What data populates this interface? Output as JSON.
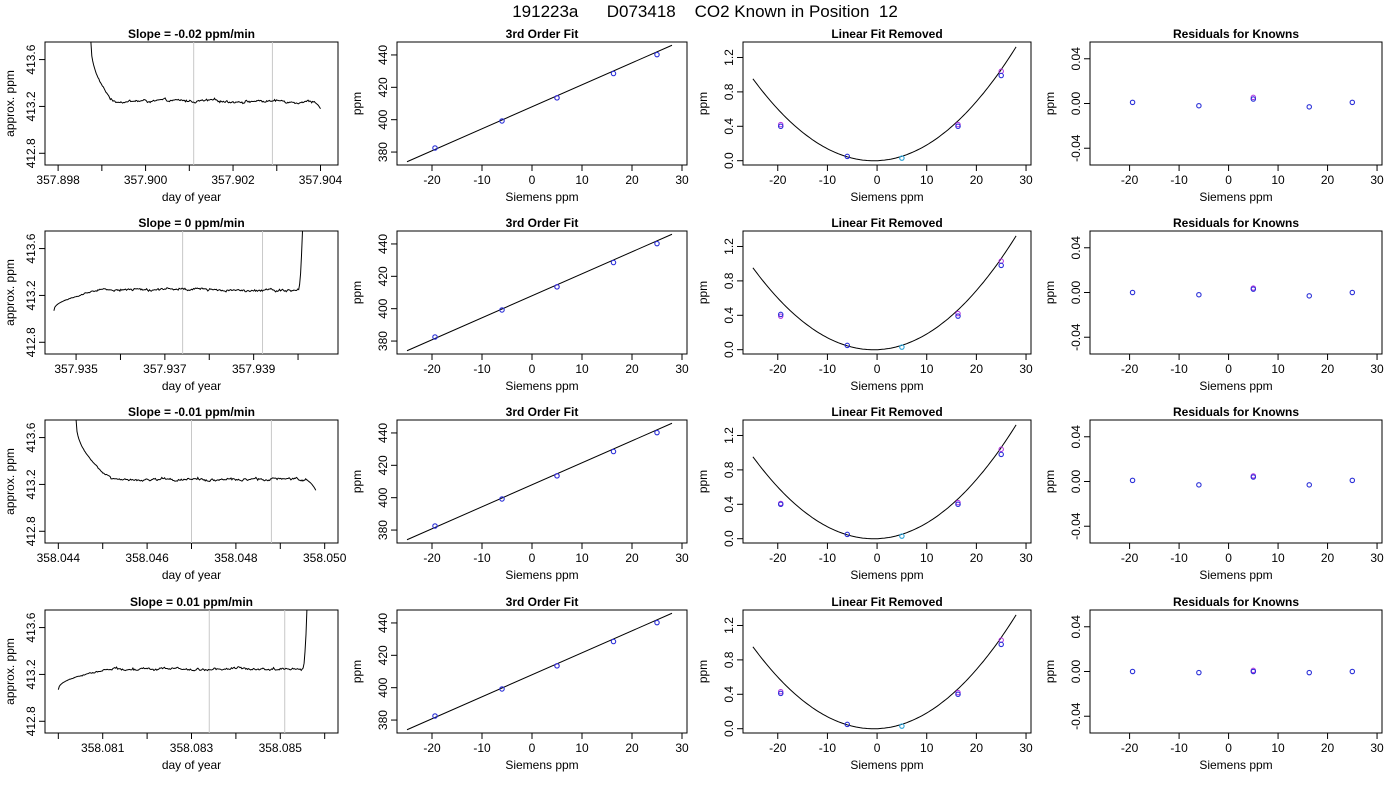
{
  "figure": {
    "title": "191223a      D073418    CO2 Known in Position  12"
  },
  "chart_data": [
    {
      "row": 0,
      "col": 0,
      "type": "line",
      "title": "Slope =  -0.02  ppm/min",
      "xlabel": "day of year",
      "ylabel": "approx. ppm",
      "xlim": [
        357.8977,
        357.9044
      ],
      "ylim": [
        412.7,
        413.75
      ],
      "xticks": [
        357.898,
        357.9,
        357.902,
        357.904
      ],
      "xtick_labels": [
        "357.898",
        "357.900",
        "357.902",
        "357.904"
      ],
      "minor_xticks": [
        357.899,
        357.901,
        357.903
      ],
      "yticks": [
        412.8,
        413.2,
        413.6
      ],
      "ytick_labels": [
        "412.8",
        "413.2",
        "413.6"
      ],
      "vlines": [
        357.9011,
        357.9029
      ],
      "trace_start": [
        357.89875,
        413.75
      ],
      "trace_plateau_start": 357.89925,
      "trace_end": [
        357.904,
        413.18
      ],
      "trace_plateau_end": 357.9038,
      "plateau_level": 413.245,
      "noise": 0.015
    },
    {
      "row": 0,
      "col": 1,
      "type": "scatter",
      "title": "3rd Order Fit",
      "xlabel": "Siemens ppm",
      "ylabel": "ppm",
      "xlim": [
        -27,
        31
      ],
      "ylim": [
        372,
        448
      ],
      "xticks": [
        -20,
        -10,
        0,
        10,
        20,
        30
      ],
      "xtick_labels": [
        "-20",
        "-10",
        "0",
        "10",
        "20",
        "30"
      ],
      "yticks": [
        380,
        400,
        420,
        440
      ],
      "ytick_labels": [
        "380",
        "400",
        "420",
        "440"
      ],
      "fit_line": [
        [
          -25,
          374
        ],
        [
          28,
          446
        ]
      ],
      "points": [
        {
          "x": -19.4,
          "y": 382.5
        },
        {
          "x": -6,
          "y": 399.2
        },
        {
          "x": 5,
          "y": 413.5
        },
        {
          "x": 16.3,
          "y": 428.5
        },
        {
          "x": 25,
          "y": 440.2
        }
      ],
      "open_points": [
        {
          "x": 5,
          "y": 413.5
        }
      ]
    },
    {
      "row": 0,
      "col": 2,
      "type": "scatter",
      "title": "Linear Fit Removed",
      "xlabel": "Siemens ppm",
      "ylabel": "ppm",
      "xlim": [
        -27,
        31
      ],
      "ylim": [
        -0.05,
        1.38
      ],
      "xticks": [
        -20,
        -10,
        0,
        10,
        20,
        30
      ],
      "xtick_labels": [
        "-20",
        "-10",
        "0",
        "10",
        "20",
        "30"
      ],
      "yticks": [
        0.0,
        0.4,
        0.8,
        1.2
      ],
      "ytick_labels": [
        "0.0",
        "0.4",
        "0.8",
        "1.2"
      ],
      "curve": {
        "x_range": [
          -25,
          28
        ],
        "a": 0.00161,
        "b": 0.00216,
        "c": 0
      },
      "points": [
        {
          "x": -19.4,
          "y": 0.4
        },
        {
          "x": -6,
          "y": 0.05
        },
        {
          "x": 5,
          "y": 0.03
        },
        {
          "x": 16.3,
          "y": 0.4
        },
        {
          "x": 25,
          "y": 0.99
        }
      ],
      "open_points": [
        {
          "x": -19.4,
          "y": 0.42
        },
        {
          "x": 16.3,
          "y": 0.42
        },
        {
          "x": 25,
          "y": 1.04
        }
      ]
    },
    {
      "row": 0,
      "col": 3,
      "type": "scatter",
      "title": "Residuals for Knowns",
      "xlabel": "Siemens ppm",
      "ylabel": "ppm",
      "xlim": [
        -28,
        31
      ],
      "ylim": [
        -0.055,
        0.055
      ],
      "xticks": [
        -20,
        -10,
        0,
        10,
        20,
        30
      ],
      "xtick_labels": [
        "-20",
        "-10",
        "0",
        "10",
        "20",
        "30"
      ],
      "yticks": [
        -0.04,
        0.0,
        0.04
      ],
      "ytick_labels": [
        "-0.04",
        "0.00",
        "0.04"
      ],
      "points": [
        {
          "x": -19.4,
          "y": 0.001
        },
        {
          "x": -6,
          "y": -0.002
        },
        {
          "x": 5,
          "y": 0.004
        },
        {
          "x": 16.3,
          "y": -0.003
        },
        {
          "x": 25,
          "y": 0.001
        }
      ],
      "open_points": [
        {
          "x": 5,
          "y": 0.0055
        }
      ]
    },
    {
      "row": 1,
      "col": 0,
      "type": "line",
      "title": "Slope =  0  ppm/min",
      "xlabel": "day of year",
      "ylabel": "approx. ppm",
      "xlim": [
        357.9343,
        357.9409
      ],
      "ylim": [
        412.7,
        413.75
      ],
      "xticks": [
        357.935,
        357.937,
        357.939
      ],
      "xtick_labels": [
        "357.935",
        "357.937",
        "357.939"
      ],
      "minor_xticks": [
        357.934,
        357.936,
        357.938,
        357.94
      ],
      "yticks": [
        412.8,
        413.2,
        413.6
      ],
      "ytick_labels": [
        "412.8",
        "413.2",
        "413.6"
      ],
      "vlines": [
        357.9374,
        357.9392
      ],
      "trace_start": [
        357.9345,
        413.07
      ],
      "trace_plateau_start": 357.9357,
      "trace_end": [
        357.9401,
        413.75
      ],
      "trace_plateau_end": 357.94,
      "plateau_level": 413.25,
      "noise": 0.015
    },
    {
      "row": 1,
      "col": 1,
      "type": "scatter",
      "title": "3rd Order Fit",
      "xlabel": "Siemens ppm",
      "ylabel": "ppm",
      "xlim": [
        -27,
        31
      ],
      "ylim": [
        372,
        448
      ],
      "xticks": [
        -20,
        -10,
        0,
        10,
        20,
        30
      ],
      "xtick_labels": [
        "-20",
        "-10",
        "0",
        "10",
        "20",
        "30"
      ],
      "yticks": [
        380,
        400,
        420,
        440
      ],
      "ytick_labels": [
        "380",
        "400",
        "420",
        "440"
      ],
      "fit_line": [
        [
          -25,
          374
        ],
        [
          28,
          446
        ]
      ],
      "points": [
        {
          "x": -19.4,
          "y": 382.5
        },
        {
          "x": -6,
          "y": 399.2
        },
        {
          "x": 5,
          "y": 413.5
        },
        {
          "x": 16.3,
          "y": 428.5
        },
        {
          "x": 25,
          "y": 440.2
        }
      ],
      "open_points": [
        {
          "x": 5,
          "y": 413.5
        }
      ]
    },
    {
      "row": 1,
      "col": 2,
      "type": "scatter",
      "title": "Linear Fit Removed",
      "xlabel": "Siemens ppm",
      "ylabel": "ppm",
      "xlim": [
        -27,
        31
      ],
      "ylim": [
        -0.05,
        1.38
      ],
      "xticks": [
        -20,
        -10,
        0,
        10,
        20,
        30
      ],
      "xtick_labels": [
        "-20",
        "-10",
        "0",
        "10",
        "20",
        "30"
      ],
      "yticks": [
        0.0,
        0.4,
        0.8,
        1.2
      ],
      "ytick_labels": [
        "0.0",
        "0.4",
        "0.8",
        "1.2"
      ],
      "curve": {
        "x_range": [
          -25,
          28
        ],
        "a": 0.00161,
        "b": 0.00216,
        "c": 0
      },
      "points": [
        {
          "x": -19.4,
          "y": 0.41
        },
        {
          "x": -6,
          "y": 0.05
        },
        {
          "x": 5,
          "y": 0.03
        },
        {
          "x": 16.3,
          "y": 0.39
        },
        {
          "x": 25,
          "y": 0.98
        }
      ],
      "open_points": [
        {
          "x": -19.4,
          "y": 0.39
        },
        {
          "x": 16.3,
          "y": 0.42
        },
        {
          "x": 25,
          "y": 1.03
        }
      ]
    },
    {
      "row": 1,
      "col": 3,
      "type": "scatter",
      "title": "Residuals for Knowns",
      "xlabel": "Siemens ppm",
      "ylabel": "ppm",
      "xlim": [
        -28,
        31
      ],
      "ylim": [
        -0.055,
        0.055
      ],
      "xticks": [
        -20,
        -10,
        0,
        10,
        20,
        30
      ],
      "xtick_labels": [
        "-20",
        "-10",
        "0",
        "10",
        "20",
        "30"
      ],
      "yticks": [
        -0.04,
        0.0,
        0.04
      ],
      "ytick_labels": [
        "-0.04",
        "0.00",
        "0.04"
      ],
      "points": [
        {
          "x": -19.4,
          "y": 0.0
        },
        {
          "x": -6,
          "y": -0.002
        },
        {
          "x": 5,
          "y": 0.003
        },
        {
          "x": 16.3,
          "y": -0.003
        },
        {
          "x": 25,
          "y": 0.0
        }
      ],
      "open_points": [
        {
          "x": 5,
          "y": 0.004
        }
      ]
    },
    {
      "row": 2,
      "col": 0,
      "type": "line",
      "title": "Slope =  -0.01  ppm/min",
      "xlabel": "day of year",
      "ylabel": "approx. ppm",
      "xlim": [
        358.0437,
        358.0503
      ],
      "ylim": [
        412.7,
        413.75
      ],
      "xticks": [
        358.044,
        358.046,
        358.048,
        358.05
      ],
      "xtick_labels": [
        "358.044",
        "358.046",
        "358.048",
        "358.050"
      ],
      "minor_xticks": [
        358.045,
        358.047,
        358.049
      ],
      "vlines": [
        358.047,
        358.0488
      ],
      "yticks": [
        412.8,
        413.2,
        413.6
      ],
      "ytick_labels": [
        "412.8",
        "413.2",
        "413.6"
      ],
      "trace_start": [
        358.0444,
        413.75
      ],
      "trace_plateau_start": 358.0452,
      "trace_end": [
        358.0498,
        413.15
      ],
      "trace_plateau_end": 358.0495,
      "plateau_level": 413.245,
      "noise": 0.015
    },
    {
      "row": 2,
      "col": 1,
      "type": "scatter",
      "title": "3rd Order Fit",
      "xlabel": "Siemens ppm",
      "ylabel": "ppm",
      "xlim": [
        -27,
        31
      ],
      "ylim": [
        372,
        448
      ],
      "xticks": [
        -20,
        -10,
        0,
        10,
        20,
        30
      ],
      "xtick_labels": [
        "-20",
        "-10",
        "0",
        "10",
        "20",
        "30"
      ],
      "yticks": [
        380,
        400,
        420,
        440
      ],
      "ytick_labels": [
        "380",
        "400",
        "420",
        "440"
      ],
      "fit_line": [
        [
          -25,
          374
        ],
        [
          28,
          446
        ]
      ],
      "points": [
        {
          "x": -19.4,
          "y": 382.5
        },
        {
          "x": -6,
          "y": 399.2
        },
        {
          "x": 5,
          "y": 413.5
        },
        {
          "x": 16.3,
          "y": 428.5
        },
        {
          "x": 25,
          "y": 440.2
        }
      ],
      "open_points": [
        {
          "x": 5,
          "y": 413.5
        }
      ]
    },
    {
      "row": 2,
      "col": 2,
      "type": "scatter",
      "title": "Linear Fit Removed",
      "xlabel": "Siemens ppm",
      "ylabel": "ppm",
      "xlim": [
        -27,
        31
      ],
      "ylim": [
        -0.05,
        1.38
      ],
      "xticks": [
        -20,
        -10,
        0,
        10,
        20,
        30
      ],
      "xtick_labels": [
        "-20",
        "-10",
        "0",
        "10",
        "20",
        "30"
      ],
      "yticks": [
        0.0,
        0.4,
        0.8,
        1.2
      ],
      "ytick_labels": [
        "0.0",
        "0.4",
        "0.8",
        "1.2"
      ],
      "curve": {
        "x_range": [
          -25,
          28
        ],
        "a": 0.00161,
        "b": 0.00216,
        "c": 0
      },
      "points": [
        {
          "x": -19.4,
          "y": 0.4
        },
        {
          "x": -6,
          "y": 0.05
        },
        {
          "x": 5,
          "y": 0.03
        },
        {
          "x": 16.3,
          "y": 0.4
        },
        {
          "x": 25,
          "y": 0.98
        }
      ],
      "open_points": [
        {
          "x": -19.4,
          "y": 0.41
        },
        {
          "x": 16.3,
          "y": 0.42
        },
        {
          "x": 25,
          "y": 1.04
        }
      ]
    },
    {
      "row": 2,
      "col": 3,
      "type": "scatter",
      "title": "Residuals for Knowns",
      "xlabel": "Siemens ppm",
      "ylabel": "ppm",
      "xlim": [
        -28,
        31
      ],
      "ylim": [
        -0.055,
        0.055
      ],
      "xticks": [
        -20,
        -10,
        0,
        10,
        20,
        30
      ],
      "xtick_labels": [
        "-20",
        "-10",
        "0",
        "10",
        "20",
        "30"
      ],
      "yticks": [
        -0.04,
        0.0,
        0.04
      ],
      "ytick_labels": [
        "-0.04",
        "0.00",
        "0.04"
      ],
      "points": [
        {
          "x": -19.4,
          "y": 0.001
        },
        {
          "x": -6,
          "y": -0.003
        },
        {
          "x": 5,
          "y": 0.004
        },
        {
          "x": 16.3,
          "y": -0.003
        },
        {
          "x": 25,
          "y": 0.001
        }
      ],
      "open_points": [
        {
          "x": 5,
          "y": 0.005
        }
      ]
    },
    {
      "row": 3,
      "col": 0,
      "type": "line",
      "title": "Slope =  0.01  ppm/min",
      "xlabel": "day of year",
      "ylabel": "approx. ppm",
      "xlim": [
        358.0797,
        358.0863
      ],
      "ylim": [
        412.7,
        413.75
      ],
      "xticks": [
        358.081,
        358.083,
        358.085
      ],
      "xtick_labels": [
        "358.081",
        "358.083",
        "358.085"
      ],
      "minor_xticks": [
        358.08,
        358.082,
        358.084,
        358.086
      ],
      "vlines": [
        358.0834,
        358.0851
      ],
      "yticks": [
        412.8,
        413.2,
        413.6
      ],
      "ytick_labels": [
        "412.8",
        "413.2",
        "413.6"
      ],
      "trace_start": [
        358.08,
        413.07
      ],
      "trace_plateau_start": 358.0812,
      "trace_end": [
        358.0856,
        413.75
      ],
      "trace_plateau_end": 358.0855,
      "plateau_level": 413.245,
      "noise": 0.015
    },
    {
      "row": 3,
      "col": 1,
      "type": "scatter",
      "title": "3rd Order Fit",
      "xlabel": "Siemens ppm",
      "ylabel": "ppm",
      "xlim": [
        -27,
        31
      ],
      "ylim": [
        372,
        448
      ],
      "xticks": [
        -20,
        -10,
        0,
        10,
        20,
        30
      ],
      "xtick_labels": [
        "-20",
        "-10",
        "0",
        "10",
        "20",
        "30"
      ],
      "yticks": [
        380,
        400,
        420,
        440
      ],
      "ytick_labels": [
        "380",
        "400",
        "420",
        "440"
      ],
      "fit_line": [
        [
          -25,
          374
        ],
        [
          28,
          446
        ]
      ],
      "points": [
        {
          "x": -19.4,
          "y": 382.5
        },
        {
          "x": -6,
          "y": 399.2
        },
        {
          "x": 5,
          "y": 413.5
        },
        {
          "x": 16.3,
          "y": 428.5
        },
        {
          "x": 25,
          "y": 440.2
        }
      ],
      "open_points": [
        {
          "x": 5,
          "y": 413.5
        }
      ]
    },
    {
      "row": 3,
      "col": 2,
      "type": "scatter",
      "title": "Linear Fit Removed",
      "xlabel": "Siemens ppm",
      "ylabel": "ppm",
      "xlim": [
        -27,
        31
      ],
      "ylim": [
        -0.05,
        1.38
      ],
      "xticks": [
        -20,
        -10,
        0,
        10,
        20,
        30
      ],
      "xtick_labels": [
        "-20",
        "-10",
        "0",
        "10",
        "20",
        "30"
      ],
      "yticks": [
        0.0,
        0.4,
        0.8,
        1.2
      ],
      "ytick_labels": [
        "0.0",
        "0.4",
        "0.8",
        "1.2"
      ],
      "curve": {
        "x_range": [
          -25,
          28
        ],
        "a": 0.00161,
        "b": 0.00216,
        "c": 0
      },
      "points": [
        {
          "x": -19.4,
          "y": 0.41
        },
        {
          "x": -6,
          "y": 0.05
        },
        {
          "x": 5,
          "y": 0.03
        },
        {
          "x": 16.3,
          "y": 0.4
        },
        {
          "x": 25,
          "y": 0.98
        }
      ],
      "open_points": [
        {
          "x": -19.4,
          "y": 0.43
        },
        {
          "x": 16.3,
          "y": 0.42
        },
        {
          "x": 25,
          "y": 1.03
        }
      ]
    },
    {
      "row": 3,
      "col": 3,
      "type": "scatter",
      "title": "Residuals for Knowns",
      "xlabel": "Siemens ppm",
      "ylabel": "ppm",
      "xlim": [
        -28,
        31
      ],
      "ylim": [
        -0.055,
        0.055
      ],
      "xticks": [
        -20,
        -10,
        0,
        10,
        20,
        30
      ],
      "xtick_labels": [
        "-20",
        "-10",
        "0",
        "10",
        "20",
        "30"
      ],
      "yticks": [
        -0.04,
        0.0,
        0.04
      ],
      "ytick_labels": [
        "-0.04",
        "0.00",
        "0.04"
      ],
      "points": [
        {
          "x": -19.4,
          "y": 0.0
        },
        {
          "x": -6,
          "y": -0.001
        },
        {
          "x": 5,
          "y": 0.0
        },
        {
          "x": 16.3,
          "y": -0.001
        },
        {
          "x": 25,
          "y": 0.0
        }
      ],
      "open_points": [
        {
          "x": 5,
          "y": 0.001
        }
      ]
    }
  ],
  "colors": {
    "point": "#2b30d8",
    "open_point": "#b030e0",
    "highlight_point": "#2aa3d8",
    "vline": "#c8c8c8",
    "line": "#000000"
  }
}
